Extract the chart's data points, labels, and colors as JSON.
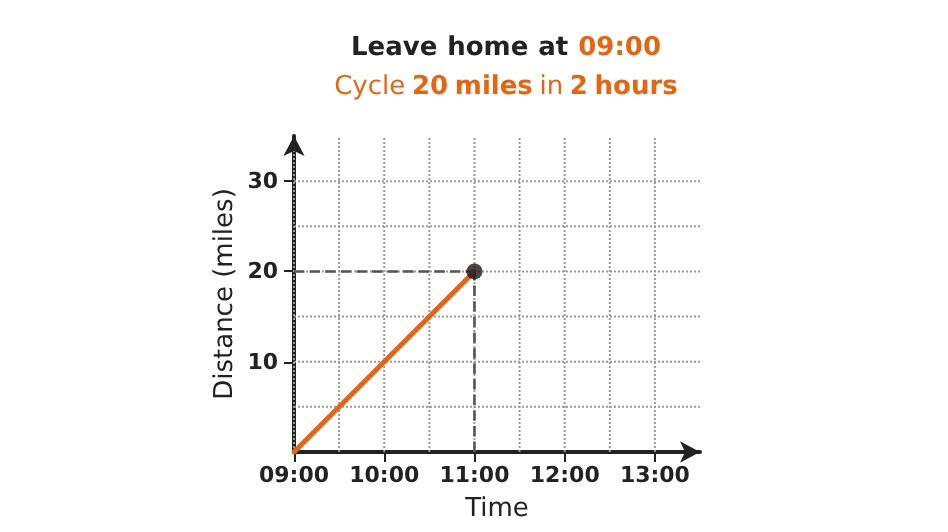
{
  "chart_data": {
    "type": "line",
    "title": "Leave home at 09:00",
    "subtitle": "Cycle 20 miles in 2 hours",
    "xlabel": "Time",
    "ylabel": "Distance (miles)",
    "x": [
      9,
      11
    ],
    "series": [
      {
        "values": [
          0,
          20
        ],
        "color": "#e8650f",
        "marker": "none"
      },
      {
        "type": "scatter",
        "x": [
          11
        ],
        "values": [
          20
        ],
        "color": "#1a1a1a",
        "marker": "circle"
      }
    ],
    "xlim": [
      9,
      13.5
    ],
    "ylim": [
      0,
      35
    ],
    "xticks": [
      {
        "value": 9,
        "label": "09:00"
      },
      {
        "value": 9.5,
        "label": null
      },
      {
        "value": 10,
        "label": "10:00"
      },
      {
        "value": 10.5,
        "label": null
      },
      {
        "value": 11,
        "label": "11:00"
      },
      {
        "value": 11.5,
        "label": null
      },
      {
        "value": 12,
        "label": "12:00"
      },
      {
        "value": 12.5,
        "label": null
      },
      {
        "value": 13,
        "label": "13:00"
      }
    ],
    "yticks": [
      {
        "value": 5,
        "label": null
      },
      10,
      {
        "value": 15,
        "label": null
      },
      20,
      {
        "value": 25,
        "label": null
      },
      30
    ],
    "ref_lines": [
      {
        "axis": "x",
        "value": 11,
        "color": "#555555",
        "line_style": "dashed"
      },
      {
        "axis": "y",
        "value": 20,
        "color": "#555555",
        "line_style": "dashed"
      }
    ],
    "grid": true,
    "line_style": "solid"
  }
}
